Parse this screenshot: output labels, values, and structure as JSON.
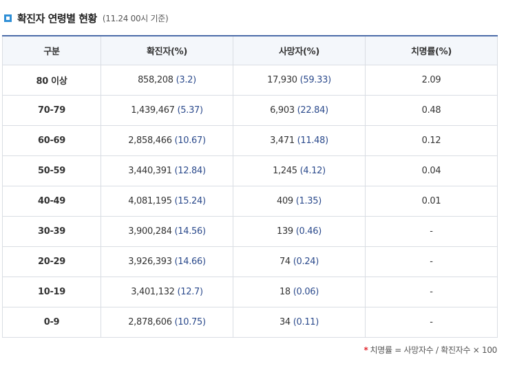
{
  "header": {
    "title": "확진자 연령별 현황",
    "subtitle": "(11.24 00시 기준)"
  },
  "table": {
    "columns": [
      "구분",
      "확진자(%)",
      "사망자(%)",
      "치명률(%)"
    ],
    "rows": [
      {
        "age": "80 이상",
        "confirmed": "858,208",
        "confirmed_pct": "(3.2)",
        "deaths": "17,930",
        "deaths_pct": "(59.33)",
        "fatality": "2.09"
      },
      {
        "age": "70-79",
        "confirmed": "1,439,467",
        "confirmed_pct": "(5.37)",
        "deaths": "6,903",
        "deaths_pct": "(22.84)",
        "fatality": "0.48"
      },
      {
        "age": "60-69",
        "confirmed": "2,858,466",
        "confirmed_pct": "(10.67)",
        "deaths": "3,471",
        "deaths_pct": "(11.48)",
        "fatality": "0.12"
      },
      {
        "age": "50-59",
        "confirmed": "3,440,391",
        "confirmed_pct": "(12.84)",
        "deaths": "1,245",
        "deaths_pct": "(4.12)",
        "fatality": "0.04"
      },
      {
        "age": "40-49",
        "confirmed": "4,081,195",
        "confirmed_pct": "(15.24)",
        "deaths": "409",
        "deaths_pct": "(1.35)",
        "fatality": "0.01"
      },
      {
        "age": "30-39",
        "confirmed": "3,900,284",
        "confirmed_pct": "(14.56)",
        "deaths": "139",
        "deaths_pct": "(0.46)",
        "fatality": "-"
      },
      {
        "age": "20-29",
        "confirmed": "3,926,393",
        "confirmed_pct": "(14.66)",
        "deaths": "74",
        "deaths_pct": "(0.24)",
        "fatality": "-"
      },
      {
        "age": "10-19",
        "confirmed": "3,401,132",
        "confirmed_pct": "(12.7)",
        "deaths": "18",
        "deaths_pct": "(0.06)",
        "fatality": "-"
      },
      {
        "age": "0-9",
        "confirmed": "2,878,606",
        "confirmed_pct": "(10.75)",
        "deaths": "34",
        "deaths_pct": "(0.11)",
        "fatality": "-"
      }
    ]
  },
  "footnote": {
    "star": "*",
    "text": "치명률 = 사망자수 / 확진자수 × 100"
  },
  "colors": {
    "accent": "#2f8fd6",
    "table_top_border": "#4a6aa8",
    "value_blue": "#2b4a8c",
    "footnote_star": "#e1262d"
  },
  "icons": {
    "heading_bullet": "square-bullet-icon"
  }
}
